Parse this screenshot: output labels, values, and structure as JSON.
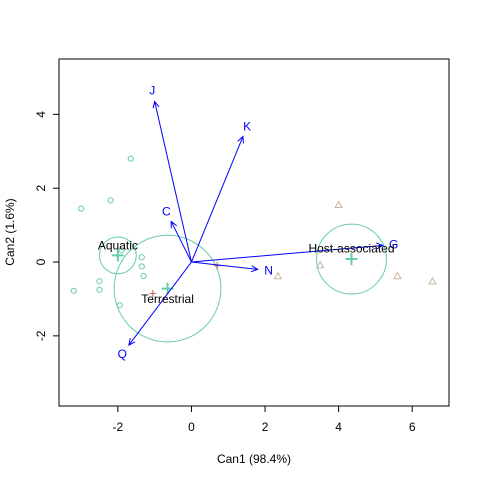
{
  "chart_data": {
    "type": "scatter",
    "xlabel": "Can1 (98.4%)",
    "ylabel": "Can2 (1.6%)",
    "xlim": [
      -3.6,
      7.0
    ],
    "ylim": [
      -3.9,
      5.5
    ],
    "x_ticks": [
      -2,
      0,
      2,
      4,
      6
    ],
    "y_ticks": [
      -2,
      0,
      2,
      4
    ],
    "grid": false,
    "groups": [
      {
        "name": "Aquatic",
        "centroid": [
          -2.0,
          0.18
        ],
        "radius": 0.5,
        "label_pos": [
          -2.0,
          0.45
        ],
        "color": "#66CDAA"
      },
      {
        "name": "Terrestrial",
        "centroid": [
          -0.65,
          -0.72
        ],
        "radius": 1.45,
        "label_pos": [
          -0.65,
          -1.0
        ],
        "color": "#66CDAA"
      },
      {
        "name": "Host-associated",
        "centroid": [
          4.35,
          0.08
        ],
        "radius": 0.95,
        "label_pos": [
          4.35,
          0.37
        ],
        "color": "#66CDAA"
      }
    ],
    "points_circle": [
      [
        -3.0,
        1.45
      ],
      [
        -2.2,
        1.67
      ],
      [
        -1.65,
        2.8
      ],
      [
        -2.5,
        -0.52
      ],
      [
        -2.5,
        -0.75
      ],
      [
        -3.2,
        -0.78
      ],
      [
        -1.95,
        -1.17
      ],
      [
        -1.35,
        0.13
      ],
      [
        -1.35,
        -0.12
      ],
      [
        -1.3,
        -0.38
      ],
      [
        -1.9,
        0.32
      ]
    ],
    "points_triangle": [
      [
        4.0,
        1.55
      ],
      [
        2.35,
        -0.38
      ],
      [
        3.5,
        -0.08
      ],
      [
        5.6,
        -0.38
      ],
      [
        6.55,
        -0.52
      ]
    ],
    "points_plus": [
      [
        -1.05,
        -0.85
      ],
      [
        0.7,
        -0.1
      ]
    ],
    "vectors": [
      {
        "label": "J",
        "x": -1.0,
        "y": 4.35
      },
      {
        "label": "K",
        "x": 1.4,
        "y": 3.4
      },
      {
        "label": "C",
        "x": -0.55,
        "y": 1.1
      },
      {
        "label": "N",
        "x": 1.8,
        "y": -0.2
      },
      {
        "label": "G",
        "x": 5.2,
        "y": 0.45
      },
      {
        "label": "Q",
        "x": -1.7,
        "y": -2.25
      }
    ],
    "colors": {
      "vector": "#0000FF",
      "group": "#66CDAA",
      "triangle": "#C8B49A",
      "plus": "#CD5C5C",
      "axis": "#000000"
    }
  }
}
